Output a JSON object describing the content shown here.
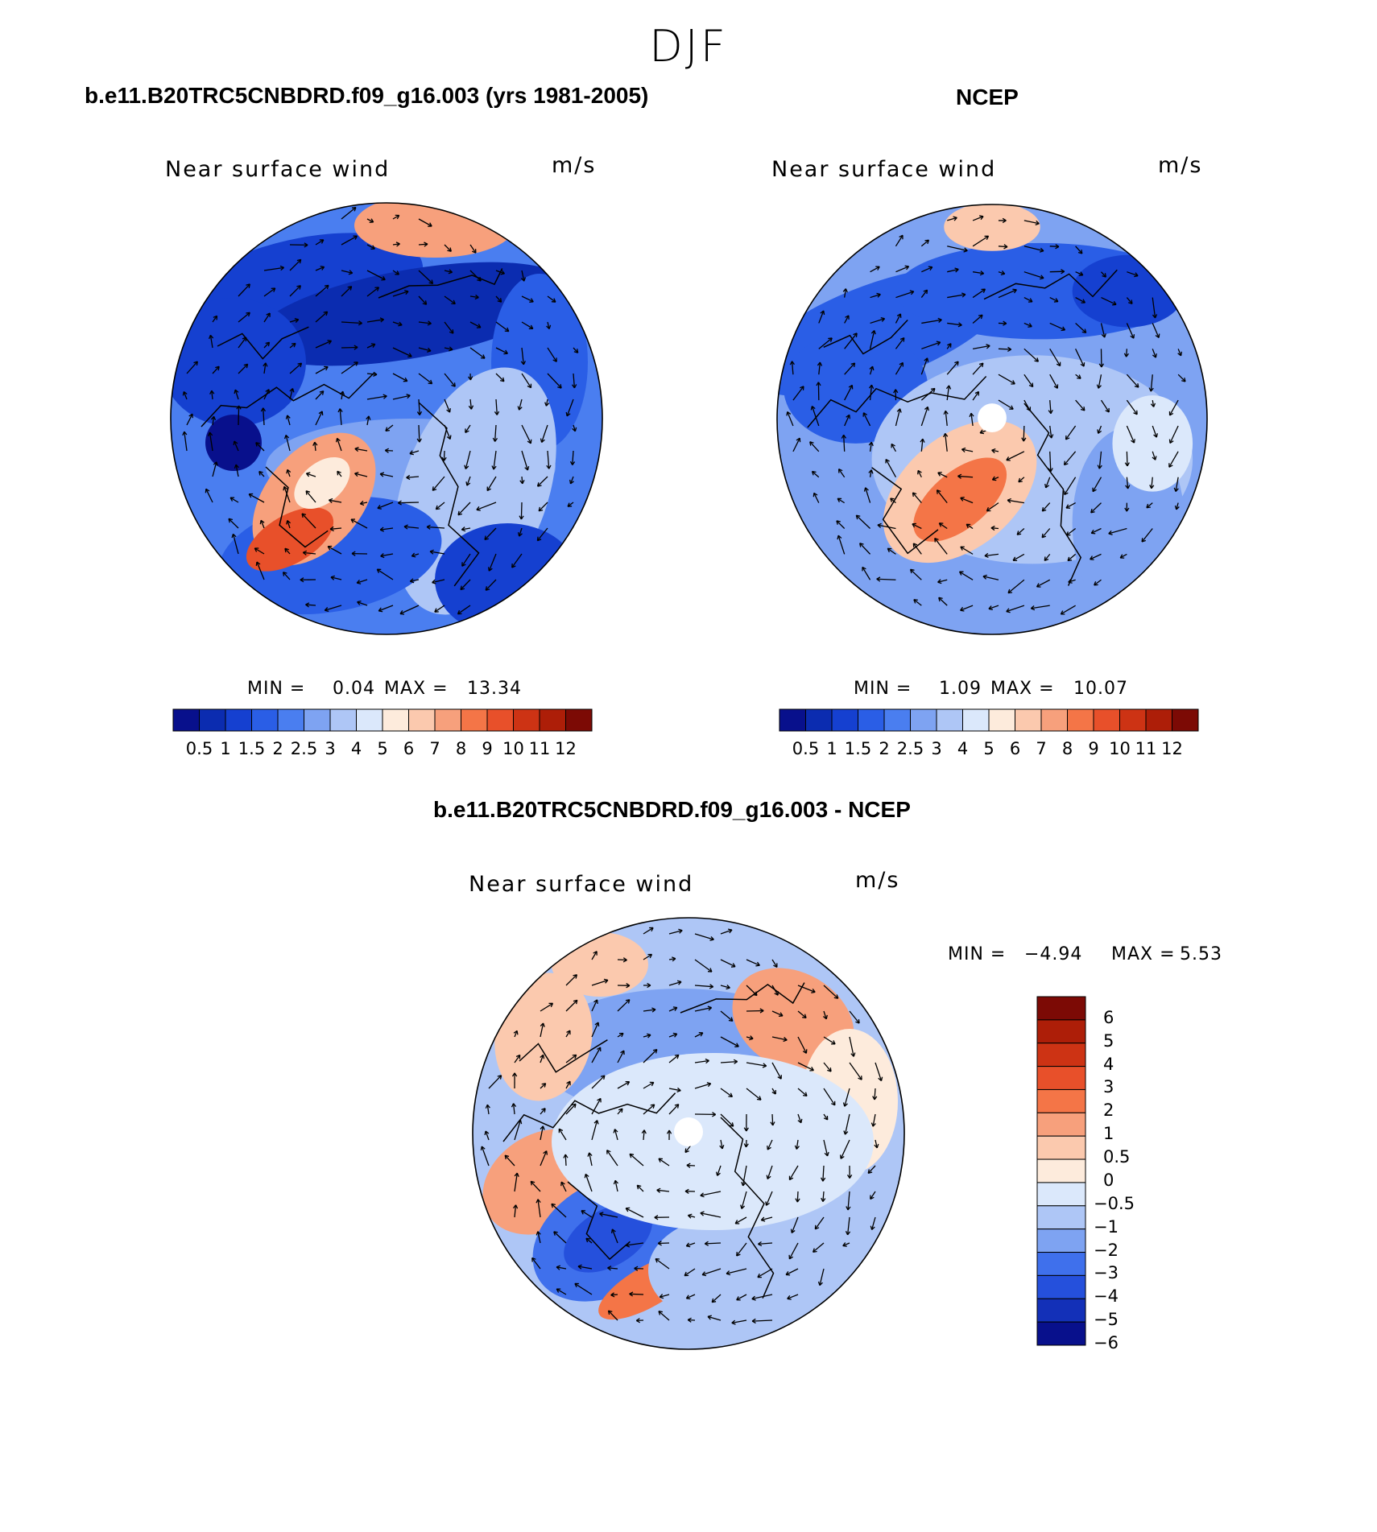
{
  "main_title": "DJF",
  "colors": {
    "abs_scale": [
      "#08108c",
      "#0b2cb0",
      "#1540d0",
      "#2a5ee6",
      "#4a7ef0",
      "#7ea3f2",
      "#aec6f6",
      "#dbe8fb",
      "#fdebdc",
      "#fbc9ae",
      "#f7a07c",
      "#f47547",
      "#e8502a",
      "#cd3314",
      "#ad1e08",
      "#7c0a05"
    ],
    "diff_scale": [
      "#08108c",
      "#1330b8",
      "#2550dc",
      "#3f70ec",
      "#7ea3f2",
      "#aec6f6",
      "#dbe8fb",
      "#fdebdc",
      "#fbc9ae",
      "#f7a07c",
      "#f47547",
      "#e8502a",
      "#cd3314",
      "#ad1e08",
      "#7c0a05"
    ],
    "land_line": "#000000"
  },
  "panels": [
    {
      "title": "b.e11.B20TRC5CNBDRD.f09_g16.003 (yrs 1981-2005)",
      "subtitle": "Near surface wind",
      "units": "m/s",
      "min_label": "MIN =",
      "min_value": "0.04",
      "max_label": "MAX =",
      "max_value": "13.34",
      "colorbar_levels": [
        "0.5",
        "1",
        "1.5",
        "2",
        "2.5",
        "3",
        "4",
        "5",
        "6",
        "7",
        "8",
        "9",
        "10",
        "11",
        "12"
      ]
    },
    {
      "title": "NCEP",
      "subtitle": "Near surface wind",
      "units": "m/s",
      "min_label": "MIN =",
      "min_value": "1.09",
      "max_label": "MAX =",
      "max_value": "10.07",
      "colorbar_levels": [
        "0.5",
        "1",
        "1.5",
        "2",
        "2.5",
        "3",
        "4",
        "5",
        "6",
        "7",
        "8",
        "9",
        "10",
        "11",
        "12"
      ]
    },
    {
      "title": "b.e11.B20TRC5CNBDRD.f09_g16.003 - NCEP",
      "subtitle": "Near surface wind",
      "units": "m/s",
      "min_label": "MIN =",
      "min_value": "−4.94",
      "max_label": "MAX =",
      "max_value": "5.53",
      "colorbar_levels": [
        "6",
        "5",
        "4",
        "3",
        "2",
        "1",
        "0.5",
        "0",
        "−0.5",
        "−1",
        "−2",
        "−3",
        "−4",
        "−5",
        "−6"
      ]
    }
  ]
}
